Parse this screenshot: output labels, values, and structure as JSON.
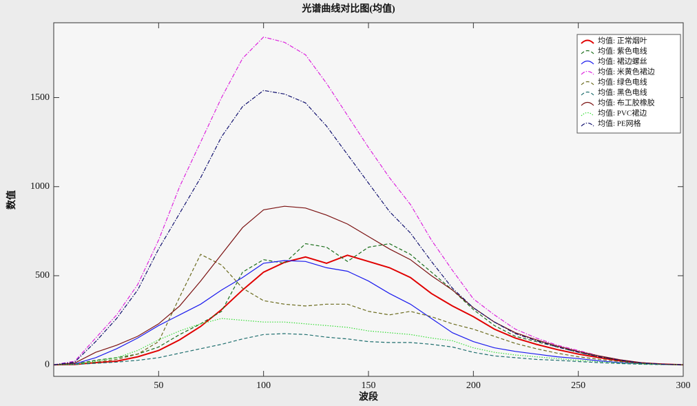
{
  "chart_data": {
    "type": "line",
    "title": "光谱曲线对比图(均值)",
    "x_label": "波段",
    "y_label": "数值",
    "x": [
      0,
      10,
      20,
      30,
      40,
      50,
      60,
      70,
      80,
      90,
      100,
      110,
      120,
      130,
      140,
      150,
      160,
      170,
      180,
      190,
      200,
      210,
      220,
      230,
      240,
      250,
      260,
      270,
      280,
      290,
      300
    ],
    "xlim": [
      0,
      300
    ],
    "ylim": [
      -65,
      1920
    ],
    "xticks": [
      50,
      100,
      150,
      200,
      250,
      300
    ],
    "yticks": [
      0,
      500,
      1000,
      1500
    ],
    "legend": "upper right",
    "series": [
      {
        "name": "均值: 正常烟叶",
        "color": "#e00000",
        "style": "solid",
        "values": [
          0,
          2,
          12,
          20,
          45,
          80,
          140,
          215,
          310,
          420,
          520,
          575,
          605,
          570,
          615,
          580,
          545,
          490,
          400,
          330,
          270,
          200,
          150,
          115,
          85,
          60,
          40,
          22,
          10,
          4,
          0
        ]
      },
      {
        "name": "均值: 紫色电线",
        "color": "#1a6e1a",
        "style": "dashed",
        "values": [
          0,
          5,
          25,
          40,
          60,
          100,
          170,
          230,
          300,
          520,
          590,
          570,
          680,
          660,
          580,
          660,
          680,
          620,
          520,
          420,
          310,
          220,
          160,
          130,
          100,
          70,
          45,
          25,
          10,
          4,
          0
        ]
      },
      {
        "name": "均值: 裙边螺丝",
        "color": "#1a1aee",
        "style": "solid",
        "values": [
          0,
          5,
          40,
          90,
          150,
          220,
          280,
          340,
          420,
          490,
          570,
          585,
          580,
          545,
          525,
          470,
          400,
          340,
          260,
          180,
          130,
          95,
          75,
          60,
          45,
          35,
          22,
          12,
          6,
          2,
          0
        ]
      },
      {
        "name": "均值: 米黄色裙边",
        "color": "#dd22dd",
        "style": "dashdot",
        "values": [
          0,
          20,
          150,
          280,
          450,
          700,
          1000,
          1250,
          1500,
          1720,
          1840,
          1810,
          1740,
          1580,
          1400,
          1220,
          1050,
          900,
          700,
          530,
          370,
          280,
          200,
          150,
          110,
          80,
          50,
          28,
          12,
          4,
          0
        ]
      },
      {
        "name": "均值: 绿色电线",
        "color": "#6b6b1e",
        "style": "dashed",
        "values": [
          0,
          3,
          15,
          30,
          60,
          130,
          380,
          620,
          560,
          430,
          360,
          340,
          330,
          340,
          340,
          300,
          280,
          300,
          270,
          230,
          200,
          160,
          120,
          90,
          65,
          45,
          30,
          18,
          8,
          3,
          0
        ]
      },
      {
        "name": "均值: 黑色电线",
        "color": "#1e6e6e",
        "style": "dashed",
        "values": [
          0,
          2,
          8,
          15,
          25,
          40,
          65,
          90,
          115,
          145,
          170,
          175,
          170,
          155,
          145,
          130,
          125,
          125,
          115,
          100,
          70,
          50,
          40,
          30,
          25,
          18,
          12,
          7,
          3,
          1,
          0
        ]
      },
      {
        "name": "均值: 布工胶橡胶",
        "color": "#7a1010",
        "style": "solid",
        "values": [
          0,
          10,
          70,
          110,
          160,
          230,
          330,
          470,
          620,
          770,
          870,
          890,
          880,
          840,
          790,
          720,
          650,
          590,
          500,
          420,
          320,
          240,
          180,
          140,
          105,
          75,
          50,
          28,
          12,
          4,
          0
        ]
      },
      {
        "name": "均值: PVC裙边",
        "color": "#33dd33",
        "style": "dotted",
        "values": [
          0,
          3,
          20,
          40,
          80,
          140,
          190,
          230,
          260,
          250,
          240,
          240,
          230,
          220,
          210,
          190,
          180,
          170,
          150,
          135,
          95,
          70,
          55,
          45,
          35,
          25,
          17,
          10,
          5,
          2,
          0
        ]
      },
      {
        "name": "均值: PE网格",
        "color": "#10106e",
        "style": "dashdot",
        "values": [
          0,
          15,
          130,
          260,
          420,
          650,
          850,
          1050,
          1280,
          1450,
          1540,
          1520,
          1470,
          1340,
          1180,
          1020,
          860,
          740,
          580,
          430,
          320,
          240,
          175,
          135,
          100,
          70,
          45,
          25,
          10,
          3,
          0
        ]
      }
    ]
  }
}
